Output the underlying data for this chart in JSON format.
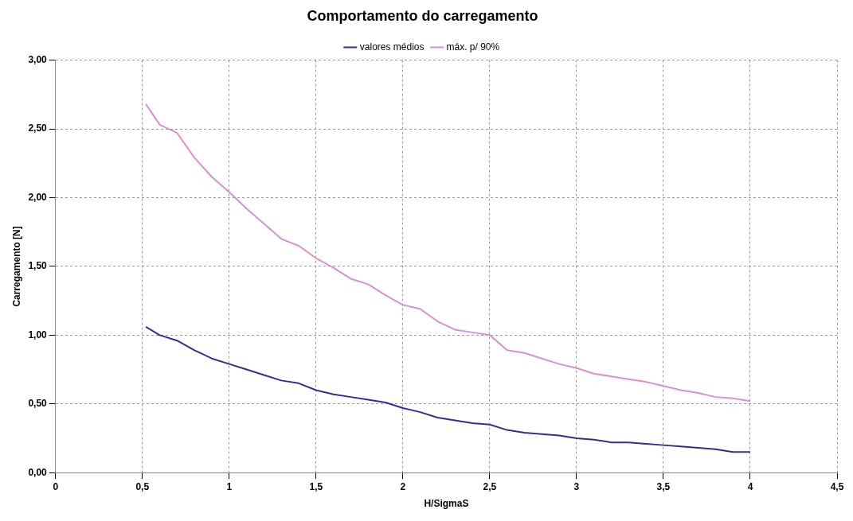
{
  "chart_data": {
    "type": "line",
    "title": "Comportamento do carregamento",
    "xlabel": "H/SigmaS",
    "ylabel": "Carregamento [N]",
    "x": [
      0.52,
      0.6,
      0.7,
      0.8,
      0.9,
      1.0,
      1.1,
      1.2,
      1.3,
      1.4,
      1.5,
      1.6,
      1.7,
      1.8,
      1.9,
      2.0,
      2.1,
      2.2,
      2.3,
      2.4,
      2.5,
      2.6,
      2.7,
      2.8,
      2.9,
      3.0,
      3.1,
      3.2,
      3.3,
      3.4,
      3.5,
      3.6,
      3.7,
      3.8,
      3.9,
      4.0
    ],
    "series": [
      {
        "name": "valores médios",
        "color": "#2e3192",
        "values": [
          1.06,
          1.0,
          0.96,
          0.89,
          0.83,
          0.79,
          0.75,
          0.71,
          0.67,
          0.65,
          0.6,
          0.57,
          0.55,
          0.53,
          0.51,
          0.47,
          0.44,
          0.4,
          0.38,
          0.36,
          0.35,
          0.31,
          0.29,
          0.28,
          0.27,
          0.25,
          0.24,
          0.22,
          0.22,
          0.21,
          0.2,
          0.19,
          0.18,
          0.17,
          0.15,
          0.15
        ]
      },
      {
        "name": "máx. p/ 90%",
        "color": "#d98fd0",
        "values": [
          2.68,
          2.53,
          2.47,
          2.29,
          2.15,
          2.04,
          1.92,
          1.81,
          1.7,
          1.65,
          1.56,
          1.49,
          1.41,
          1.37,
          1.29,
          1.22,
          1.19,
          1.1,
          1.04,
          1.02,
          1.0,
          0.89,
          0.87,
          0.83,
          0.79,
          0.76,
          0.72,
          0.7,
          0.68,
          0.66,
          0.63,
          0.6,
          0.58,
          0.55,
          0.54,
          0.52
        ]
      }
    ],
    "xlim": [
      0,
      4.5
    ],
    "xticks": [
      0,
      {
        "value": 0.5,
        "label": "0,5"
      },
      1,
      {
        "value": 1.5,
        "label": "1,5"
      },
      2,
      {
        "value": 2.5,
        "label": "2,5"
      },
      3,
      {
        "value": 3.5,
        "label": "3,5"
      },
      4,
      {
        "value": 4.5,
        "label": "4,5"
      }
    ],
    "ylim": [
      0,
      3
    ],
    "yticks": [
      {
        "value": 0,
        "label": "0,00"
      },
      {
        "value": 0.5,
        "label": "0,50"
      },
      {
        "value": 1,
        "label": "1,00"
      },
      {
        "value": 1.5,
        "label": "1,50"
      },
      {
        "value": 2,
        "label": "2,00"
      },
      {
        "value": 2.5,
        "label": "2,50"
      },
      {
        "value": 3,
        "label": "3,00"
      }
    ],
    "grid": true,
    "legend": "top",
    "marker": "none",
    "line_style": "solid"
  }
}
